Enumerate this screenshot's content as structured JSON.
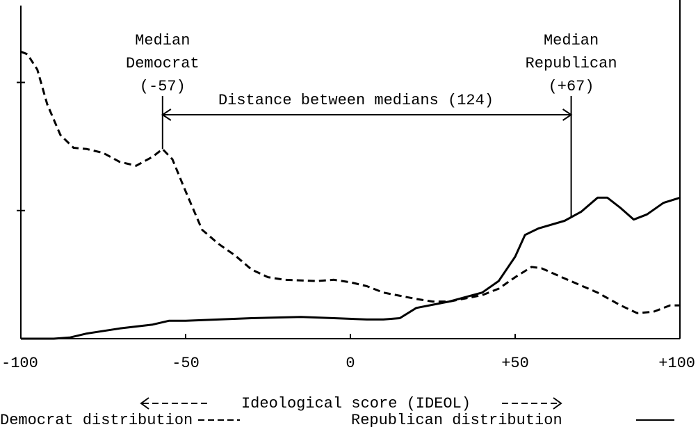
{
  "chart_data": {
    "type": "line",
    "xlim": [
      -100,
      100
    ],
    "xticks": [
      -100,
      -50,
      0,
      {
        "value": 50,
        "label": "+50"
      },
      {
        "value": 100,
        "label": "+100"
      }
    ],
    "ylim": [
      0,
      2.6
    ],
    "yticks": [
      1,
      2
    ],
    "xlabel": "Ideological score (IDEOL)",
    "series": [
      {
        "name": "Democrat distribution",
        "color": "#000000",
        "dash": true,
        "x": [
          -100,
          -98,
          -95,
          -92,
          -88,
          -84,
          -80,
          -75,
          -70,
          -65,
          -60,
          -57,
          -54,
          -50,
          -45,
          -40,
          -35,
          -30,
          -25,
          -20,
          -10,
          -5,
          0,
          5,
          10,
          20,
          25,
          30,
          40,
          45,
          50,
          55,
          58,
          65,
          75,
          82,
          87,
          92,
          97,
          100
        ],
        "values": [
          2.24,
          2.22,
          2.1,
          1.83,
          1.59,
          1.49,
          1.48,
          1.45,
          1.38,
          1.35,
          1.42,
          1.48,
          1.4,
          1.15,
          0.85,
          0.74,
          0.65,
          0.54,
          0.48,
          0.46,
          0.45,
          0.46,
          0.44,
          0.41,
          0.36,
          0.31,
          0.29,
          0.29,
          0.34,
          0.39,
          0.48,
          0.56,
          0.55,
          0.47,
          0.36,
          0.26,
          0.2,
          0.21,
          0.26,
          0.26
        ]
      },
      {
        "name": "Republican distribution",
        "color": "#000000",
        "dash": false,
        "x": [
          -100,
          -95,
          -90,
          -85,
          -80,
          -70,
          -60,
          -55,
          -50,
          -40,
          -30,
          -15,
          -5,
          5,
          10,
          15,
          20,
          30,
          40,
          45,
          50,
          53,
          57,
          65,
          70,
          75,
          78,
          82,
          86,
          90,
          95,
          100
        ],
        "values": [
          0,
          0,
          0,
          0.01,
          0.04,
          0.08,
          0.11,
          0.14,
          0.14,
          0.15,
          0.16,
          0.17,
          0.16,
          0.15,
          0.15,
          0.16,
          0.24,
          0.29,
          0.36,
          0.45,
          0.64,
          0.81,
          0.86,
          0.92,
          0.99,
          1.1,
          1.1,
          1.02,
          0.93,
          0.97,
          1.06,
          1.1
        ]
      }
    ],
    "annotations": [
      {
        "lines": [
          "Median",
          "Democrat",
          "(-57)"
        ],
        "x": -57,
        "series": 0
      },
      {
        "lines": [
          "Median",
          "Republican",
          "(+67)"
        ],
        "x": 67,
        "series": 1
      }
    ],
    "distance_label": "Distance between medians (124)"
  }
}
